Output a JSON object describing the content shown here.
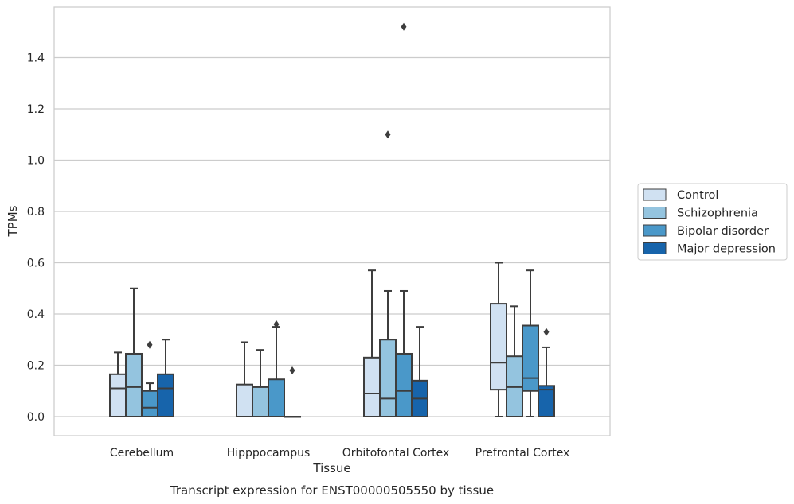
{
  "chart_data": {
    "type": "box",
    "title": "",
    "caption": "Transcript expression for ENST00000505550 by tissue",
    "xlabel": "Tissue",
    "ylabel": "TPMs",
    "ylim": [
      -0.075,
      1.6
    ],
    "yticks": [
      "0.0",
      "0.2",
      "0.4",
      "0.6",
      "0.8",
      "1.0",
      "1.2",
      "1.4"
    ],
    "grid": "horizontal",
    "legend_position": "right",
    "categories": [
      "Cerebellum",
      "Hipppocampus",
      "Orbitofontal Cortex",
      "Prefrontal Cortex"
    ],
    "series": [
      {
        "name": "Control",
        "color": "#d0e1f2",
        "boxes": [
          {
            "whisker_low": 0.0,
            "q1": 0.0,
            "median": 0.11,
            "q3": 0.165,
            "whisker_high": 0.25,
            "outliers": []
          },
          {
            "whisker_low": 0.0,
            "q1": 0.0,
            "median": 0.0,
            "q3": 0.125,
            "whisker_high": 0.29,
            "outliers": []
          },
          {
            "whisker_low": 0.0,
            "q1": 0.0,
            "median": 0.09,
            "q3": 0.23,
            "whisker_high": 0.57,
            "outliers": []
          },
          {
            "whisker_low": 0.0,
            "q1": 0.105,
            "median": 0.21,
            "q3": 0.44,
            "whisker_high": 0.6,
            "outliers": []
          }
        ]
      },
      {
        "name": "Schizophrenia",
        "color": "#94c4df",
        "boxes": [
          {
            "whisker_low": 0.0,
            "q1": 0.0,
            "median": 0.115,
            "q3": 0.245,
            "whisker_high": 0.5,
            "outliers": []
          },
          {
            "whisker_low": 0.0,
            "q1": 0.0,
            "median": 0.0,
            "q3": 0.115,
            "whisker_high": 0.26,
            "outliers": []
          },
          {
            "whisker_low": 0.0,
            "q1": 0.0,
            "median": 0.07,
            "q3": 0.3,
            "whisker_high": 0.49,
            "outliers": [
              1.1
            ]
          },
          {
            "whisker_low": 0.0,
            "q1": 0.0,
            "median": 0.115,
            "q3": 0.235,
            "whisker_high": 0.43,
            "outliers": []
          }
        ]
      },
      {
        "name": "Bipolar disorder",
        "color": "#4a98c9",
        "boxes": [
          {
            "whisker_low": 0.0,
            "q1": 0.0,
            "median": 0.035,
            "q3": 0.1,
            "whisker_high": 0.13,
            "outliers": [
              0.28
            ]
          },
          {
            "whisker_low": 0.0,
            "q1": 0.0,
            "median": 0.0,
            "q3": 0.145,
            "whisker_high": 0.35,
            "outliers": [
              0.36
            ]
          },
          {
            "whisker_low": 0.0,
            "q1": 0.0,
            "median": 0.1,
            "q3": 0.245,
            "whisker_high": 0.49,
            "outliers": [
              1.52
            ]
          },
          {
            "whisker_low": 0.0,
            "q1": 0.1,
            "median": 0.15,
            "q3": 0.355,
            "whisker_high": 0.57,
            "outliers": []
          }
        ]
      },
      {
        "name": "Major depression",
        "color": "#1764ab",
        "boxes": [
          {
            "whisker_low": 0.0,
            "q1": 0.0,
            "median": 0.11,
            "q3": 0.165,
            "whisker_high": 0.3,
            "outliers": []
          },
          {
            "whisker_low": 0.0,
            "q1": 0.0,
            "median": 0.0,
            "q3": 0.0,
            "whisker_high": 0.0,
            "outliers": [
              0.18
            ]
          },
          {
            "whisker_low": 0.0,
            "q1": 0.0,
            "median": 0.07,
            "q3": 0.14,
            "whisker_high": 0.35,
            "outliers": []
          },
          {
            "whisker_low": 0.0,
            "q1": 0.0,
            "median": 0.105,
            "q3": 0.12,
            "whisker_high": 0.27,
            "outliers": [
              0.33
            ]
          }
        ]
      }
    ]
  }
}
